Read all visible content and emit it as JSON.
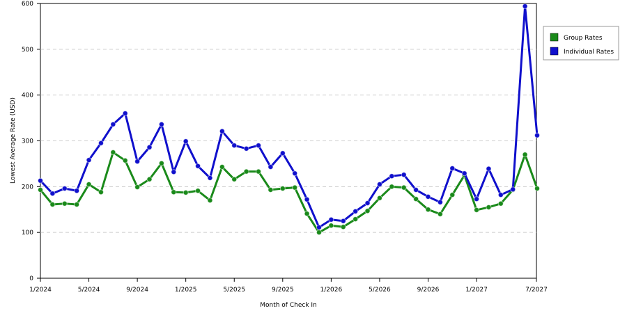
{
  "chart_data": {
    "type": "line",
    "x_label": "Month of Check In",
    "y_label": "Lowest Average Rate (USD)",
    "categories": [
      "1/2024",
      null,
      null,
      null,
      "5/2024",
      null,
      null,
      null,
      "9/2024",
      null,
      null,
      null,
      "1/2025",
      null,
      null,
      null,
      "5/2025",
      null,
      null,
      null,
      "9/2025",
      null,
      null,
      null,
      "1/2026",
      null,
      null,
      null,
      "5/2026",
      null,
      null,
      null,
      "9/2026",
      null,
      null,
      null,
      "1/2027",
      null,
      null,
      null,
      null,
      "7/2027"
    ],
    "series": [
      {
        "name": "Group Rates",
        "color": "#1a8a1a",
        "values": [
          193,
          161,
          163,
          161,
          205,
          188,
          275,
          257,
          199,
          216,
          251,
          188,
          187,
          191,
          170,
          243,
          216,
          233,
          233,
          193,
          196,
          198,
          141,
          100,
          115,
          112,
          129,
          147,
          175,
          200,
          198,
          173,
          150,
          140,
          182,
          225,
          149,
          155,
          163,
          193,
          270,
          196
        ]
      },
      {
        "name": "Individual Rates",
        "color": "#1010cc",
        "values": [
          213,
          185,
          196,
          191,
          258,
          295,
          336,
          360,
          255,
          286,
          336,
          232,
          299,
          245,
          219,
          321,
          290,
          283,
          290,
          243,
          273,
          229,
          172,
          111,
          128,
          125,
          146,
          164,
          205,
          223,
          226,
          193,
          178,
          166,
          240,
          229,
          173,
          239,
          182,
          194,
          594,
          312
        ]
      }
    ],
    "ylim": [
      0,
      600
    ],
    "yticks": [
      0,
      100,
      200,
      300,
      400,
      500,
      600
    ],
    "grid": true,
    "legend": "right"
  }
}
